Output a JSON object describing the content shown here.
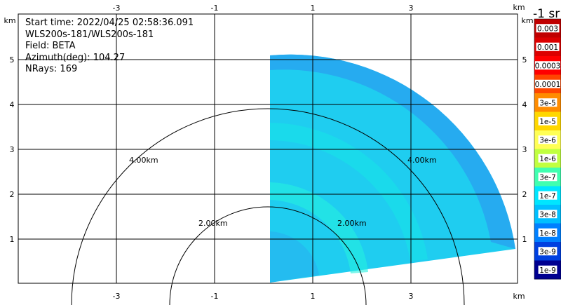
{
  "info": {
    "start_time": "Start time: 2022/04/25 02:58:36.091",
    "instrument": "WLS200s-181/WLS200s-181",
    "field": "Field: BETA",
    "azimuth": "Azimuth(deg): 104.27",
    "nrays": "NRays: 169"
  },
  "axes": {
    "x_unit": "km",
    "y_unit": "km",
    "x_ticks": [
      "-3",
      "-1",
      "1",
      "3"
    ],
    "y_ticks": [
      "5",
      "4",
      "3",
      "2",
      "1"
    ]
  },
  "range_rings": [
    "4.00km",
    "2.00km",
    "2.00km",
    "4.00km"
  ],
  "colorbar": {
    "title": "-1 sr",
    "labels": [
      "0.003",
      "0.001",
      "0.0003",
      "0.0001",
      "3e-5",
      "1e-5",
      "3e-6",
      "1e-6",
      "3e-7",
      "1e-7",
      "3e-8",
      "1e-8",
      "3e-9",
      "1e-9"
    ],
    "colors": [
      "#c00000",
      "#dc0000",
      "#ff0000",
      "#ff4500",
      "#ff8c00",
      "#ffd700",
      "#ffff55",
      "#c0ff40",
      "#40ffb0",
      "#00e6ff",
      "#00bfff",
      "#0080ff",
      "#0040e0",
      "#000090"
    ]
  },
  "chart_data": {
    "type": "heatmap",
    "field": "BETA",
    "units": "-1 sr",
    "x_unit": "km",
    "y_unit": "km",
    "xlim": [
      -4,
      4
    ],
    "ylim": [
      0,
      5.3
    ],
    "sector": {
      "min_range_km": 0,
      "max_range_km": 5.1,
      "azimuth_start_deg": 0,
      "azimuth_end_deg": 80
    },
    "range_rings_km": [
      2,
      4
    ],
    "dominant_values": [
      "3e-7",
      "1e-7"
    ],
    "legend": "right"
  }
}
